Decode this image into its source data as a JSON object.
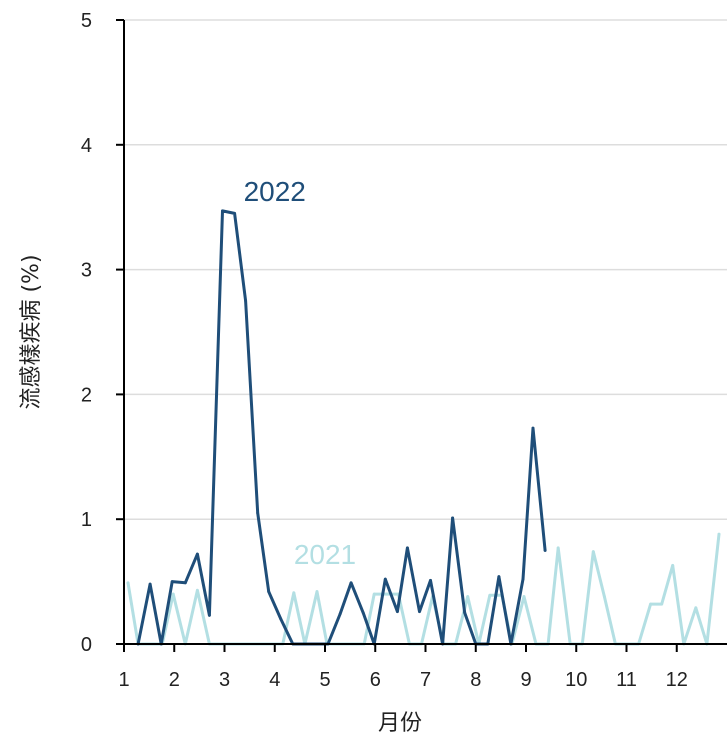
{
  "chart_data": {
    "type": "line",
    "xlabel": "月份",
    "ylabel": "流感樣疾病 (%)",
    "xlim": [
      1,
      13
    ],
    "ylim": [
      0,
      5
    ],
    "x_ticks": [
      1,
      2,
      3,
      4,
      5,
      6,
      7,
      8,
      9,
      10,
      11,
      12
    ],
    "x_tick_labels": [
      "1",
      "2",
      "3",
      "4",
      "5",
      "6",
      "7",
      "8",
      "9",
      "10",
      "11",
      "12"
    ],
    "y_ticks": [
      0,
      1,
      2,
      3,
      4,
      5
    ],
    "y_tick_labels": [
      "0",
      "1",
      "2",
      "3",
      "4",
      "5"
    ],
    "grid": "horizontal",
    "series": [
      {
        "name": "2021",
        "color": "#b3dfe3",
        "points": [
          [
            1.08,
            0.49
          ],
          [
            1.28,
            0.0
          ],
          [
            1.5,
            0.0
          ],
          [
            1.76,
            0.0
          ],
          [
            1.98,
            0.4
          ],
          [
            2.22,
            0.0
          ],
          [
            2.46,
            0.43
          ],
          [
            2.7,
            0.0
          ],
          [
            2.94,
            0.0
          ],
          [
            3.2,
            0.0
          ],
          [
            3.44,
            0.0
          ],
          [
            3.68,
            0.0
          ],
          [
            3.92,
            0.0
          ],
          [
            4.16,
            0.0
          ],
          [
            4.38,
            0.41
          ],
          [
            4.6,
            0.0
          ],
          [
            4.84,
            0.42
          ],
          [
            5.04,
            0.0
          ],
          [
            5.3,
            0.0
          ],
          [
            5.54,
            0.0
          ],
          [
            5.78,
            0.0
          ],
          [
            5.98,
            0.4
          ],
          [
            6.22,
            0.4
          ],
          [
            6.46,
            0.4
          ],
          [
            6.68,
            0.0
          ],
          [
            6.92,
            0.0
          ],
          [
            7.14,
            0.38
          ],
          [
            7.36,
            0.0
          ],
          [
            7.6,
            0.0
          ],
          [
            7.84,
            0.38
          ],
          [
            8.06,
            0.0
          ],
          [
            8.28,
            0.39
          ],
          [
            8.52,
            0.39
          ],
          [
            8.72,
            0.0
          ],
          [
            8.96,
            0.38
          ],
          [
            9.2,
            0.0
          ],
          [
            9.44,
            0.0
          ],
          [
            9.64,
            0.77
          ],
          [
            9.88,
            0.0
          ],
          [
            10.12,
            0.0
          ],
          [
            10.34,
            0.74
          ],
          [
            10.56,
            0.38
          ],
          [
            10.78,
            0.0
          ],
          [
            11.02,
            0.0
          ],
          [
            11.24,
            0.0
          ],
          [
            11.48,
            0.32
          ],
          [
            11.7,
            0.32
          ],
          [
            11.92,
            0.63
          ],
          [
            12.14,
            0.0
          ],
          [
            12.38,
            0.29
          ],
          [
            12.6,
            0.0
          ],
          [
            12.84,
            0.88
          ]
        ]
      },
      {
        "name": "2022",
        "color": "#1f4e79",
        "points": [
          [
            1.28,
            0.0
          ],
          [
            1.52,
            0.48
          ],
          [
            1.74,
            0.0
          ],
          [
            1.96,
            0.5
          ],
          [
            2.22,
            0.49
          ],
          [
            2.46,
            0.72
          ],
          [
            2.7,
            0.23
          ],
          [
            2.96,
            3.47
          ],
          [
            3.2,
            3.45
          ],
          [
            3.42,
            2.75
          ],
          [
            3.66,
            1.05
          ],
          [
            3.88,
            0.42
          ],
          [
            4.12,
            0.2
          ],
          [
            4.36,
            0.0
          ],
          [
            4.6,
            0.0
          ],
          [
            4.84,
            0.0
          ],
          [
            5.06,
            0.0
          ],
          [
            5.3,
            0.24
          ],
          [
            5.52,
            0.49
          ],
          [
            5.76,
            0.25
          ],
          [
            5.98,
            0.0
          ],
          [
            6.2,
            0.52
          ],
          [
            6.44,
            0.26
          ],
          [
            6.64,
            0.77
          ],
          [
            6.88,
            0.26
          ],
          [
            7.1,
            0.51
          ],
          [
            7.34,
            0.0
          ],
          [
            7.54,
            1.01
          ],
          [
            7.78,
            0.25
          ],
          [
            8.0,
            0.0
          ],
          [
            8.24,
            0.0
          ],
          [
            8.46,
            0.54
          ],
          [
            8.7,
            0.0
          ],
          [
            8.94,
            0.52
          ],
          [
            9.14,
            1.73
          ],
          [
            9.38,
            0.75
          ]
        ]
      }
    ],
    "series_labels": [
      {
        "text": "2022",
        "x": 4.0,
        "y": 3.55,
        "color": "#1f4e79"
      },
      {
        "text": "2021",
        "x": 5.0,
        "y": 0.64,
        "color": "#b3dfe3"
      }
    ]
  }
}
